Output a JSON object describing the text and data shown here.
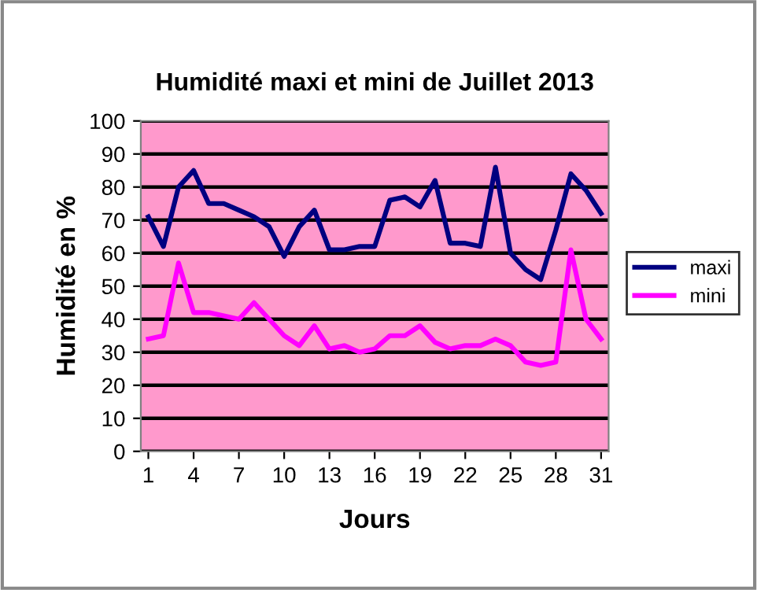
{
  "chart_data": {
    "type": "line",
    "title": "Humidité maxi et mini de Juillet 2013",
    "xlabel": "Jours",
    "ylabel": "Humidité en %",
    "categories": [
      "1",
      null,
      null,
      "4",
      null,
      null,
      "7",
      null,
      null,
      "10",
      null,
      null,
      "13",
      null,
      null,
      "16",
      null,
      null,
      "19",
      null,
      null,
      "22",
      null,
      null,
      "25",
      null,
      null,
      "28",
      null,
      null,
      "31"
    ],
    "series": [
      {
        "name": "maxi",
        "color": "#000080",
        "values": [
          71,
          62,
          80,
          85,
          75,
          75,
          73,
          71,
          68,
          59,
          68,
          73,
          61,
          61,
          62,
          62,
          76,
          77,
          74,
          82,
          63,
          63,
          62,
          86,
          60,
          55,
          52,
          67,
          84,
          79,
          72
        ]
      },
      {
        "name": "mini",
        "color": "#ff00ff",
        "values": [
          34,
          35,
          57,
          42,
          42,
          41,
          40,
          45,
          40,
          35,
          32,
          38,
          31,
          32,
          30,
          31,
          35,
          35,
          38,
          33,
          31,
          32,
          32,
          34,
          32,
          27,
          26,
          27,
          61,
          40,
          34
        ]
      }
    ],
    "ylim": [
      0,
      100
    ],
    "yticks": [
      0,
      10,
      20,
      30,
      40,
      50,
      60,
      70,
      80,
      90,
      100
    ],
    "grid": "y",
    "legend": "right",
    "marker": "none",
    "line_style": "solid"
  }
}
